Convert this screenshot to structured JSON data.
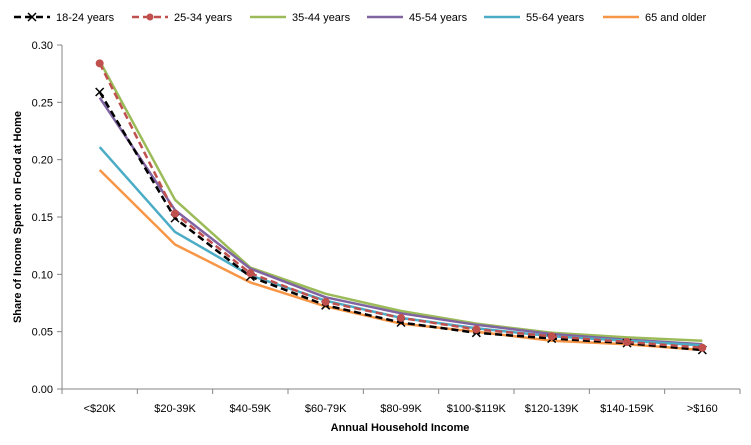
{
  "chart_data": {
    "type": "line",
    "title": "",
    "xlabel": "Annual Household Income",
    "ylabel": "Share of Income Spent on Food at Home",
    "categories": [
      "<$20K",
      "$20-39K",
      "$40-59K",
      "$60-79K",
      "$80-99K",
      "$100-$119K",
      "$120-139K",
      "$140-159K",
      ">$160"
    ],
    "ylim": [
      0,
      0.3
    ],
    "yticks": [
      "0.00",
      "0.05",
      "0.10",
      "0.15",
      "0.20",
      "0.25",
      "0.30"
    ],
    "grid": false,
    "legend": "top",
    "series": [
      {
        "name": "18-24 years",
        "color": "#000000",
        "dash": "dashed",
        "marker": "x",
        "values": [
          0.259,
          0.149,
          0.098,
          0.073,
          0.058,
          0.049,
          0.044,
          0.04,
          0.034
        ]
      },
      {
        "name": "25-34 years",
        "color": "#c0504d",
        "dash": "dashed",
        "marker": "circle",
        "values": [
          0.284,
          0.153,
          0.101,
          0.076,
          0.062,
          0.052,
          0.046,
          0.041,
          0.036
        ]
      },
      {
        "name": "35-44 years",
        "color": "#9bbb59",
        "dash": "solid",
        "marker": "none",
        "values": [
          0.286,
          0.165,
          0.106,
          0.083,
          0.068,
          0.057,
          0.049,
          0.045,
          0.042
        ]
      },
      {
        "name": "45-54 years",
        "color": "#8064a2",
        "dash": "solid",
        "marker": "none",
        "values": [
          0.254,
          0.156,
          0.105,
          0.08,
          0.066,
          0.056,
          0.048,
          0.043,
          0.039
        ]
      },
      {
        "name": "55-64 years",
        "color": "#4bacc6",
        "dash": "solid",
        "marker": "none",
        "values": [
          0.211,
          0.137,
          0.099,
          0.077,
          0.062,
          0.053,
          0.046,
          0.042,
          0.038
        ]
      },
      {
        "name": "65 and older",
        "color": "#f79646",
        "dash": "solid",
        "marker": "none",
        "values": [
          0.191,
          0.126,
          0.093,
          0.072,
          0.057,
          0.05,
          0.042,
          0.039,
          0.034
        ]
      }
    ]
  }
}
